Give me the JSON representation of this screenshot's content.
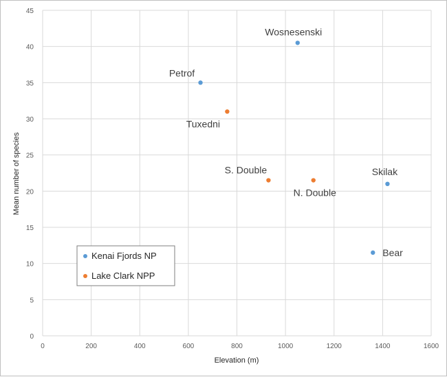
{
  "chart_data": {
    "type": "scatter",
    "xlabel": "Elevation (m)",
    "ylabel": "Mean number of species",
    "xlim": [
      0,
      1600
    ],
    "ylim": [
      0,
      45
    ],
    "xticks": [
      0,
      200,
      400,
      600,
      800,
      1000,
      1200,
      1400,
      1600
    ],
    "yticks": [
      0,
      5,
      10,
      15,
      20,
      25,
      30,
      35,
      40,
      45
    ],
    "grid": true,
    "legend_position": "bottom-left",
    "series": [
      {
        "name": "Kenai Fjords NP",
        "color": "#5b9bd5",
        "points": [
          {
            "label": "Wosnesenski",
            "x": 1050,
            "y": 40.5
          },
          {
            "label": "Petrof",
            "x": 650,
            "y": 35
          },
          {
            "label": "Skilak",
            "x": 1420,
            "y": 21
          },
          {
            "label": "Bear",
            "x": 1360,
            "y": 11.5
          }
        ]
      },
      {
        "name": "Lake Clark NPP",
        "color": "#ed7d31",
        "points": [
          {
            "label": "Tuxedni",
            "x": 760,
            "y": 31
          },
          {
            "label": "S. Double",
            "x": 930,
            "y": 21.5
          },
          {
            "label": "N. Double",
            "x": 1115,
            "y": 21.5
          }
        ]
      }
    ]
  }
}
